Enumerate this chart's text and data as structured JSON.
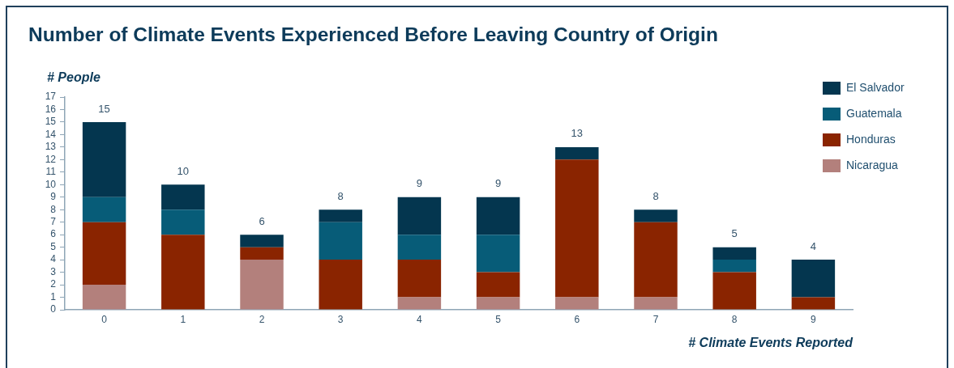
{
  "chart_data": {
    "type": "bar",
    "title": "Number of Climate Events Experienced Before Leaving Country of Origin",
    "xlabel": "# Climate Events Reported",
    "ylabel": "# People",
    "categories": [
      "0",
      "1",
      "2",
      "3",
      "4",
      "5",
      "6",
      "7",
      "8",
      "9"
    ],
    "series": [
      {
        "name": "Nicaragua",
        "color": "#b3807c",
        "values": [
          2,
          0,
          4,
          0,
          1,
          1,
          1,
          1,
          0,
          0
        ]
      },
      {
        "name": "Honduras",
        "color": "#8a2400",
        "values": [
          5,
          6,
          1,
          4,
          3,
          2,
          11,
          6,
          3,
          1
        ]
      },
      {
        "name": "Guatemala",
        "color": "#075c78",
        "values": [
          2,
          2,
          0,
          3,
          2,
          3,
          0,
          0,
          1,
          0
        ]
      },
      {
        "name": "El Salvador",
        "color": "#04364f",
        "values": [
          6,
          2,
          1,
          1,
          3,
          3,
          1,
          1,
          1,
          3
        ]
      }
    ],
    "stacked": true,
    "ylim": [
      0,
      17
    ],
    "yticks": [
      0,
      1,
      2,
      3,
      4,
      5,
      6,
      7,
      8,
      9,
      10,
      11,
      12,
      13,
      14,
      15,
      16,
      17
    ],
    "totals": [
      "15",
      "10",
      "6",
      "8",
      "9",
      "9",
      "13",
      "8",
      "5",
      "4"
    ],
    "legend": "top right"
  }
}
